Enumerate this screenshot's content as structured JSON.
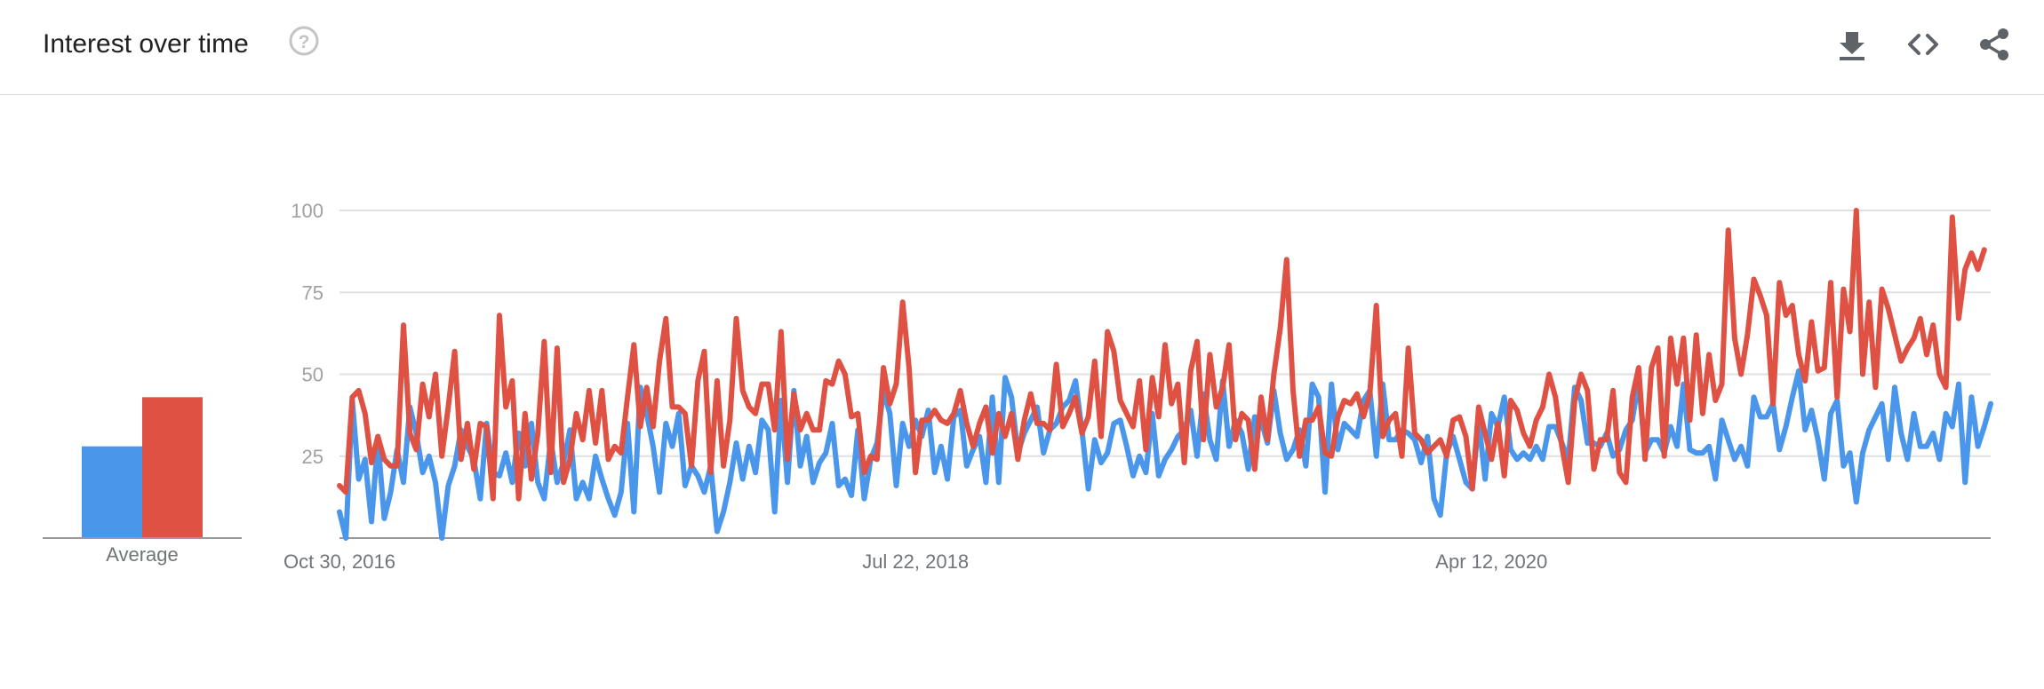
{
  "header": {
    "title": "Interest over time",
    "help_icon": "help-circle-icon",
    "tools": [
      "download-icon",
      "embed-code-icon",
      "share-icon"
    ]
  },
  "colors": {
    "series_a": "#4a96ea",
    "series_b": "#de5143",
    "grid": "#e0e0e0",
    "axis": "#9a9a9a"
  },
  "average": {
    "label": "Average",
    "values": [
      28,
      43
    ]
  },
  "chart_data": {
    "type": "line",
    "x_tick_labels": [
      "Oct 30, 2016",
      "Jul 22, 2018",
      "Apr 12, 2020"
    ],
    "y_ticks": [
      25,
      50,
      75,
      100
    ],
    "ylim": [
      0,
      100
    ],
    "x_start": "Oct 30, 2016",
    "interval": "week",
    "series": [
      {
        "color": "#4a96ea",
        "values": [
          8,
          0,
          42,
          18,
          24,
          5,
          30,
          6,
          14,
          27,
          17,
          40,
          32,
          20,
          25,
          17,
          0,
          16,
          22,
          33,
          28,
          24,
          12,
          35,
          20,
          19,
          26,
          17,
          32,
          22,
          35,
          17,
          12,
          30,
          17,
          23,
          33,
          12,
          17,
          12,
          25,
          18,
          12,
          7,
          14,
          35,
          8,
          46,
          38,
          28,
          14,
          35,
          28,
          38,
          16,
          22,
          19,
          14,
          22,
          2,
          8,
          17,
          29,
          18,
          28,
          20,
          36,
          33,
          8,
          42,
          17,
          45,
          22,
          31,
          17,
          23,
          26,
          35,
          16,
          18,
          13,
          33,
          12,
          24,
          29,
          45,
          38,
          16,
          35,
          28,
          36,
          31,
          39,
          20,
          28,
          18,
          37,
          39,
          22,
          27,
          31,
          17,
          43,
          17,
          49,
          43,
          26,
          32,
          36,
          40,
          26,
          33,
          35,
          40,
          42,
          48,
          33,
          15,
          30,
          23,
          26,
          35,
          36,
          28,
          19,
          25,
          20,
          38,
          19,
          24,
          27,
          31,
          33,
          39,
          25,
          44,
          30,
          24,
          48,
          28,
          36,
          32,
          21,
          37,
          36,
          29,
          45,
          32,
          24,
          27,
          33,
          22,
          47,
          43,
          14,
          47,
          27,
          35,
          33,
          31,
          42,
          45,
          25,
          47,
          30,
          30,
          33,
          32,
          30,
          23,
          31,
          12,
          7,
          26,
          31,
          24,
          17,
          15,
          36,
          18,
          38,
          34,
          43,
          27,
          24,
          26,
          24,
          28,
          24,
          34,
          34,
          29,
          24,
          46,
          42,
          29,
          29,
          28,
          32,
          25,
          27,
          33,
          36,
          48,
          26,
          30,
          30,
          26,
          34,
          28,
          47,
          27,
          26,
          26,
          28,
          18,
          36,
          30,
          24,
          28,
          22,
          43,
          37,
          37,
          41,
          27,
          34,
          43,
          51,
          33,
          39,
          30,
          18,
          38,
          42,
          22,
          26,
          11,
          26,
          33,
          37,
          41,
          24,
          46,
          32,
          24,
          38,
          28,
          28,
          32,
          24,
          38,
          34,
          47,
          17,
          43,
          28,
          34,
          41
        ]
      },
      {
        "color": "#de5143",
        "values": [
          16,
          14,
          43,
          45,
          38,
          23,
          31,
          24,
          22,
          22,
          65,
          32,
          27,
          47,
          37,
          50,
          25,
          40,
          57,
          24,
          35,
          21,
          35,
          34,
          12,
          68,
          40,
          48,
          12,
          38,
          18,
          32,
          60,
          20,
          58,
          17,
          24,
          38,
          30,
          45,
          29,
          45,
          24,
          28,
          26,
          43,
          59,
          34,
          46,
          34,
          54,
          67,
          40,
          40,
          38,
          22,
          48,
          57,
          20,
          48,
          22,
          36,
          67,
          45,
          40,
          38,
          47,
          47,
          33,
          63,
          24,
          44,
          33,
          38,
          33,
          33,
          48,
          47,
          54,
          50,
          37,
          38,
          20,
          25,
          24,
          52,
          41,
          47,
          72,
          52,
          20,
          36,
          36,
          39,
          36,
          35,
          38,
          45,
          35,
          28,
          35,
          40,
          26,
          38,
          31,
          38,
          24,
          36,
          44,
          35,
          35,
          33,
          53,
          34,
          38,
          43,
          32,
          37,
          54,
          31,
          63,
          57,
          42,
          38,
          34,
          48,
          27,
          49,
          37,
          59,
          41,
          47,
          23,
          51,
          60,
          30,
          56,
          40,
          46,
          59,
          30,
          38,
          36,
          21,
          43,
          30,
          50,
          64,
          85,
          45,
          25,
          36,
          36,
          40,
          26,
          25,
          37,
          42,
          41,
          44,
          37,
          44,
          71,
          31,
          36,
          38,
          25,
          58,
          32,
          30,
          26,
          28,
          30,
          25,
          36,
          37,
          31,
          15,
          40,
          32,
          24,
          35,
          19,
          42,
          39,
          32,
          28,
          36,
          40,
          50,
          43,
          28,
          17,
          42,
          50,
          45,
          21,
          30,
          30,
          45,
          20,
          17,
          43,
          52,
          24,
          52,
          58,
          25,
          61,
          47,
          61,
          36,
          62,
          38,
          56,
          42,
          47,
          94,
          61,
          50,
          62,
          79,
          74,
          68,
          41,
          78,
          68,
          71,
          56,
          48,
          66,
          51,
          52,
          78,
          43,
          76,
          63,
          100,
          50,
          72,
          46,
          76,
          70,
          62,
          54,
          58,
          61,
          67,
          56,
          65,
          50,
          46,
          98,
          67,
          82,
          87,
          82,
          88
        ]
      }
    ]
  }
}
